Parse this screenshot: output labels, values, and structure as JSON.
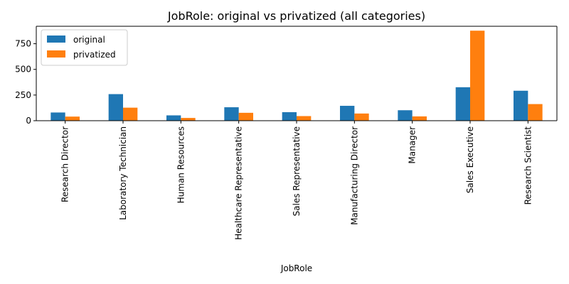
{
  "chart_data": {
    "type": "bar",
    "title": "JobRole: original vs privatized (all categories)",
    "xlabel": "JobRole",
    "ylabel": "",
    "categories": [
      "Research Director",
      "Laboratory Technician",
      "Human Resources",
      "Healthcare Representative",
      "Sales Representative",
      "Manufacturing Director",
      "Manager",
      "Sales Executive",
      "Research Scientist"
    ],
    "series": [
      {
        "name": "original",
        "color": "#1f77b4",
        "values": [
          80,
          259,
          52,
          131,
          83,
          145,
          102,
          326,
          292
        ]
      },
      {
        "name": "privatized",
        "color": "#ff7f0e",
        "values": [
          40,
          127,
          27,
          77,
          45,
          70,
          42,
          877,
          162
        ]
      }
    ],
    "ylim": [
      0,
      920
    ],
    "yticks": [
      0,
      250,
      500,
      750
    ],
    "legend_position": "top-left",
    "grid": false
  }
}
